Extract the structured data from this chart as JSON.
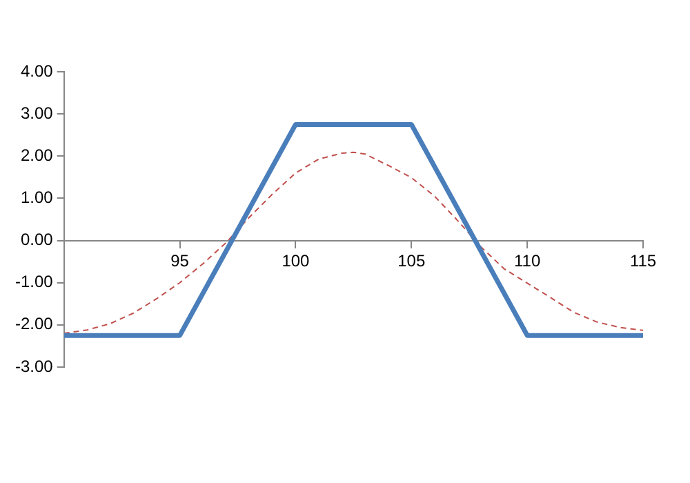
{
  "chart_data": {
    "type": "line",
    "xlim": [
      90,
      115
    ],
    "xticks": [
      95,
      100,
      105,
      110,
      115
    ],
    "ylim": [
      -3,
      4
    ],
    "yticks": [
      {
        "value": -3,
        "label": "-3.00"
      },
      {
        "value": -2,
        "label": "-2.00"
      },
      {
        "value": -1,
        "label": "-1.00"
      },
      {
        "value": 0,
        "label": "0.00"
      },
      {
        "value": 1,
        "label": "1.00"
      },
      {
        "value": 2,
        "label": "2.00"
      },
      {
        "value": 3,
        "label": "3.00"
      },
      {
        "value": 4,
        "label": "4.00"
      }
    ],
    "grid": false,
    "legend": false,
    "marker": "none",
    "series": [
      {
        "color": "#4a7ebb",
        "line_style": "solid",
        "x": [
          90,
          95,
          100,
          105,
          110,
          115
        ],
        "values": [
          -2.25,
          -2.25,
          2.75,
          2.75,
          -2.25,
          -2.25
        ]
      },
      {
        "color": "#c0504d",
        "line_style": "dashed",
        "x": [
          90,
          91,
          92,
          93,
          94,
          95,
          96,
          97,
          98,
          99,
          100,
          101,
          102,
          102.5,
          103,
          104,
          105,
          106,
          107,
          108,
          109,
          110,
          111,
          112,
          113,
          114,
          115
        ],
        "values": [
          -2.2,
          -2.12,
          -1.97,
          -1.72,
          -1.38,
          -1.0,
          -0.55,
          -0.05,
          0.55,
          1.1,
          1.6,
          1.93,
          2.07,
          2.09,
          2.05,
          1.78,
          1.49,
          1.05,
          0.47,
          -0.15,
          -0.67,
          -1.01,
          -1.35,
          -1.7,
          -1.93,
          -2.06,
          -2.13
        ]
      }
    ]
  }
}
